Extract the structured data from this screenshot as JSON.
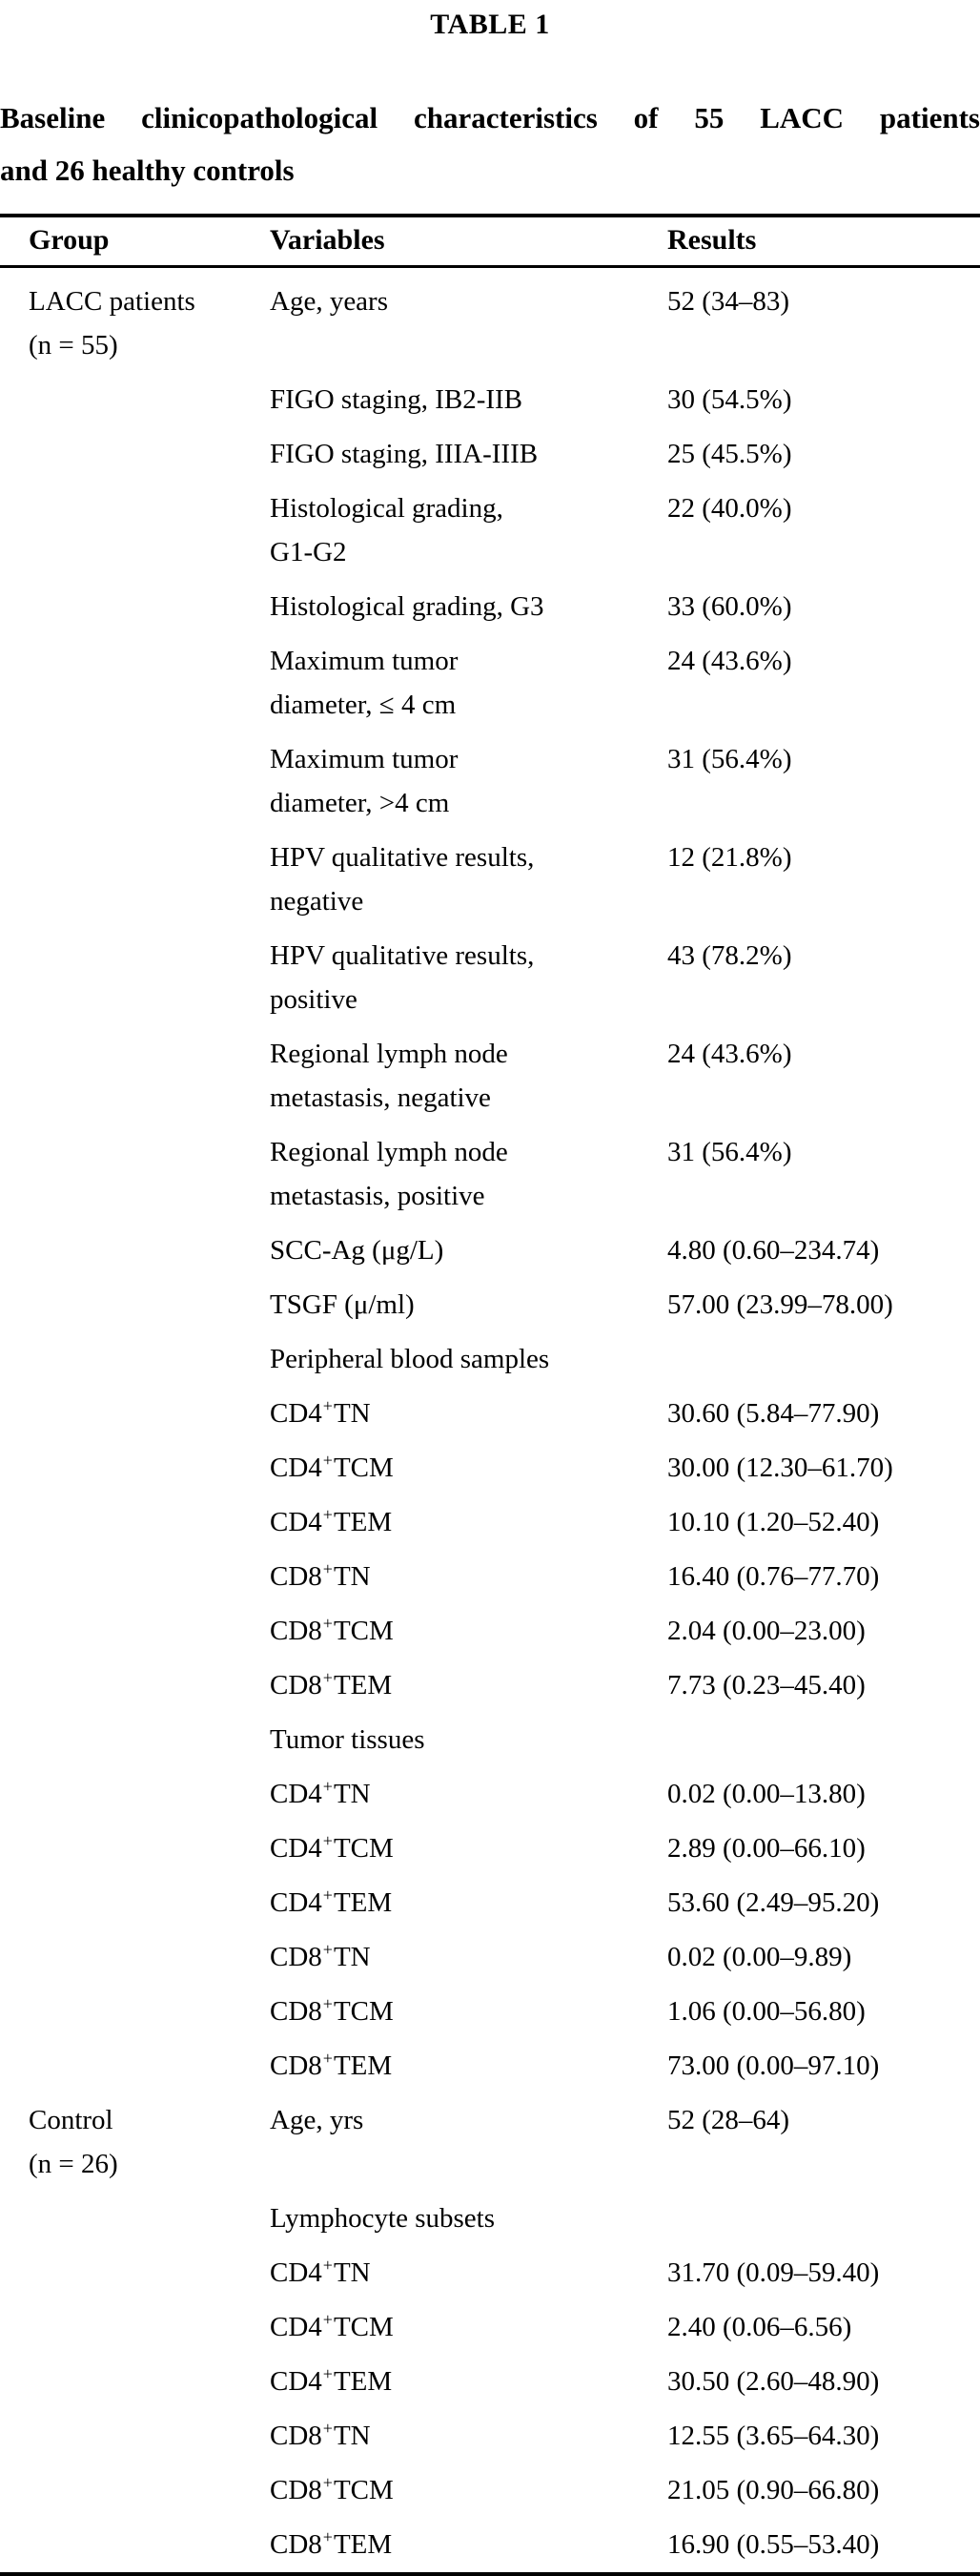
{
  "page": {
    "table_label": "TABLE 1",
    "caption_line1": "Baseline clinicopathological characteristics of 55 LACC patients",
    "caption_line2": "and 26 healthy controls",
    "text_color": "#000000",
    "background_color": "#ffffff"
  },
  "table": {
    "columns": [
      "Group",
      "Variables",
      "Results"
    ],
    "groups": [
      {
        "label": "LACC patients (n = 55)"
      },
      {
        "label": "Control (n = 26)"
      }
    ],
    "rows": [
      {
        "group": "LACC patients\n(n = 55)",
        "variable": [
          {
            "t": "Age, years"
          }
        ],
        "result": "52 (34–83)"
      },
      {
        "variable": [
          {
            "t": "FIGO staging, IB2-IIB"
          }
        ],
        "result": "30 (54.5%)"
      },
      {
        "variable": [
          {
            "t": "FIGO staging, IIIA-IIIB"
          }
        ],
        "result": "25 (45.5%)"
      },
      {
        "variable": [
          {
            "t": "Histological grading,\nG1-G2"
          }
        ],
        "result": "22 (40.0%)"
      },
      {
        "variable": [
          {
            "t": "Histological grading, G3"
          }
        ],
        "result": "33 (60.0%)"
      },
      {
        "variable": [
          {
            "t": "Maximum tumor\ndiameter, ≤ 4 cm"
          }
        ],
        "result": "24 (43.6%)"
      },
      {
        "variable": [
          {
            "t": "Maximum tumor\ndiameter, >4 cm"
          }
        ],
        "result": "31 (56.4%)"
      },
      {
        "variable": [
          {
            "t": "HPV qualitative results,\nnegative"
          }
        ],
        "result": "12 (21.8%)"
      },
      {
        "variable": [
          {
            "t": "HPV qualitative results,\npositive"
          }
        ],
        "result": "43 (78.2%)"
      },
      {
        "variable": [
          {
            "t": "Regional lymph node\nmetastasis, negative"
          }
        ],
        "result": "24 (43.6%)"
      },
      {
        "variable": [
          {
            "t": "Regional lymph node\nmetastasis, positive"
          }
        ],
        "result": "31 (56.4%)"
      },
      {
        "variable": [
          {
            "t": "SCC-Ag (μg/L)"
          }
        ],
        "result": "4.80 (0.60–234.74)"
      },
      {
        "variable": [
          {
            "t": "TSGF (μ/ml)"
          }
        ],
        "result": "57.00 (23.99–78.00)"
      },
      {
        "variable": [
          {
            "t": "Peripheral blood samples"
          }
        ],
        "result": ""
      },
      {
        "variable": [
          {
            "t": "CD4"
          },
          {
            "t": "+",
            "sup": true
          },
          {
            "t": "TN"
          }
        ],
        "result": "30.60 (5.84–77.90)"
      },
      {
        "variable": [
          {
            "t": "CD4"
          },
          {
            "t": "+",
            "sup": true
          },
          {
            "t": "TCM"
          }
        ],
        "result": "30.00 (12.30–61.70)"
      },
      {
        "variable": [
          {
            "t": "CD4"
          },
          {
            "t": "+",
            "sup": true
          },
          {
            "t": "TEM"
          }
        ],
        "result": "10.10 (1.20–52.40)"
      },
      {
        "variable": [
          {
            "t": "CD8"
          },
          {
            "t": "+",
            "sup": true
          },
          {
            "t": "TN"
          }
        ],
        "result": "16.40 (0.76–77.70)"
      },
      {
        "variable": [
          {
            "t": "CD8"
          },
          {
            "t": "+",
            "sup": true
          },
          {
            "t": "TCM"
          }
        ],
        "result": "2.04 (0.00–23.00)"
      },
      {
        "variable": [
          {
            "t": "CD8"
          },
          {
            "t": "+",
            "sup": true
          },
          {
            "t": "TEM"
          }
        ],
        "result": "7.73 (0.23–45.40)"
      },
      {
        "variable": [
          {
            "t": "Tumor tissues"
          }
        ],
        "result": ""
      },
      {
        "variable": [
          {
            "t": "CD4"
          },
          {
            "t": "+",
            "sup": true
          },
          {
            "t": "TN"
          }
        ],
        "result": "0.02 (0.00–13.80)"
      },
      {
        "variable": [
          {
            "t": "CD4"
          },
          {
            "t": "+",
            "sup": true
          },
          {
            "t": "TCM"
          }
        ],
        "result": "2.89 (0.00–66.10)"
      },
      {
        "variable": [
          {
            "t": "CD4"
          },
          {
            "t": "+",
            "sup": true
          },
          {
            "t": "TEM"
          }
        ],
        "result": "53.60 (2.49–95.20)"
      },
      {
        "variable": [
          {
            "t": "CD8"
          },
          {
            "t": "+",
            "sup": true
          },
          {
            "t": "TN"
          }
        ],
        "result": "0.02 (0.00–9.89)"
      },
      {
        "variable": [
          {
            "t": "CD8"
          },
          {
            "t": "+",
            "sup": true
          },
          {
            "t": "TCM"
          }
        ],
        "result": "1.06 (0.00–56.80)"
      },
      {
        "variable": [
          {
            "t": "CD8"
          },
          {
            "t": "+",
            "sup": true
          },
          {
            "t": "TEM"
          }
        ],
        "result": "73.00 (0.00–97.10)"
      },
      {
        "group": "Control\n(n = 26)",
        "variable": [
          {
            "t": "Age, yrs"
          }
        ],
        "result": "52 (28–64)"
      },
      {
        "variable": [
          {
            "t": "Lymphocyte subsets"
          }
        ],
        "result": ""
      },
      {
        "variable": [
          {
            "t": "CD4"
          },
          {
            "t": "+",
            "sup": true
          },
          {
            "t": "TN"
          }
        ],
        "result": "31.70 (0.09–59.40)"
      },
      {
        "variable": [
          {
            "t": "CD4"
          },
          {
            "t": "+",
            "sup": true
          },
          {
            "t": "TCM"
          }
        ],
        "result": "2.40 (0.06–6.56)"
      },
      {
        "variable": [
          {
            "t": "CD4"
          },
          {
            "t": "+",
            "sup": true
          },
          {
            "t": "TEM"
          }
        ],
        "result": "30.50 (2.60–48.90)"
      },
      {
        "variable": [
          {
            "t": "CD8"
          },
          {
            "t": "+",
            "sup": true
          },
          {
            "t": "TN"
          }
        ],
        "result": "12.55 (3.65–64.30)"
      },
      {
        "variable": [
          {
            "t": "CD8"
          },
          {
            "t": "+",
            "sup": true
          },
          {
            "t": "TCM"
          }
        ],
        "result": "21.05 (0.90–66.80)"
      },
      {
        "variable": [
          {
            "t": "CD8"
          },
          {
            "t": "+",
            "sup": true
          },
          {
            "t": "TEM"
          }
        ],
        "result": "16.90 (0.55–53.40)"
      }
    ]
  }
}
